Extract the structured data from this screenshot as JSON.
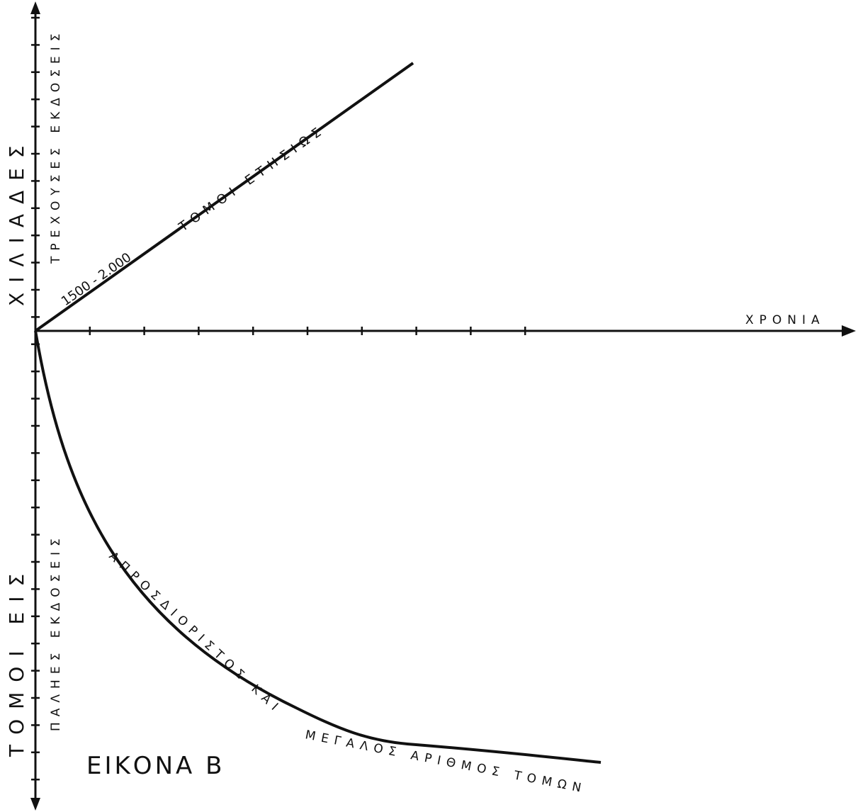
{
  "figure": {
    "title": "ΕΙΚΟΝΑ Β",
    "x_axis_label": "ΧΡΟΝΙΑ",
    "y_axis_upper_label": "ΧΙΛΙΑΔΕΣ",
    "y_axis_lower_label": "ΤΟΜΟΙ ΕΙΣ",
    "upper_section_label": "ΤΡΕΧΟΥΣΕΣ ΕΚΔΟΣΕΙΣ",
    "lower_section_label": "ΠΑΛΗΕΣ ΕΚΔΟΣΕΙΣ",
    "rising_line_rate": "1500 - 2.000",
    "rising_line_text": "ΤΟΜΟΙ ΕΤΗΣΙΩΣ",
    "falling_curve_text_1": "ΑΠΡΟΣΔΙΟΡΙΣΤΟΣ ΚΑΙ",
    "falling_curve_text_2": "ΜΕΓΑΛΟΣ ΑΡΙΘΜΟΣ ΤΟΜΩΝ"
  }
}
